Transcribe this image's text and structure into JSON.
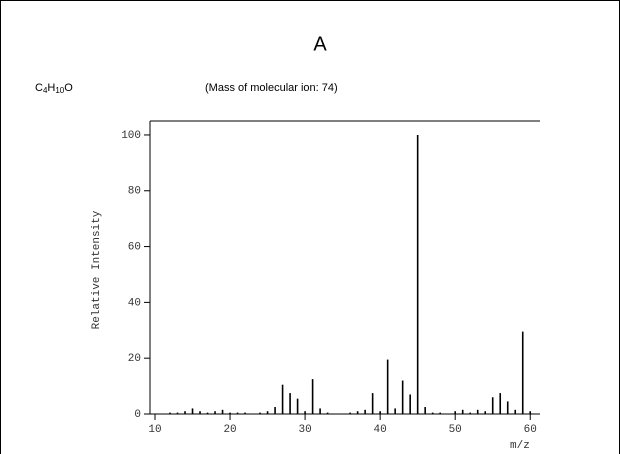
{
  "chart_data": {
    "type": "bar",
    "title": "A",
    "formula": [
      "C",
      "4",
      "H",
      "10",
      "O"
    ],
    "subtitle": "(Mass of molecular ion: 74)",
    "xlabel": "m/z",
    "ylabel": "Relative Intensity",
    "x": [
      12,
      13,
      14,
      15,
      16,
      17,
      18,
      19,
      20,
      21,
      22,
      24,
      25,
      26,
      27,
      28,
      29,
      30,
      31,
      32,
      33,
      36,
      37,
      38,
      39,
      40,
      41,
      42,
      43,
      44,
      45,
      46,
      47,
      48,
      50,
      51,
      52,
      53,
      54,
      55,
      56,
      57,
      58,
      59,
      60
    ],
    "values": [
      0.5,
      0.5,
      1,
      2,
      1,
      0.5,
      1,
      1.5,
      0.5,
      0.5,
      0.5,
      0.5,
      1,
      2.5,
      10.5,
      7.5,
      5.5,
      1,
      12.5,
      2,
      0.5,
      0.5,
      1,
      1.5,
      7.5,
      1,
      19.5,
      2,
      12,
      7,
      100,
      2.5,
      0.5,
      0.5,
      1,
      1.5,
      0.5,
      1.5,
      1,
      6,
      7.5,
      4.5,
      1.5,
      29.5,
      1
    ],
    "color": "#000000",
    "xlim": [
      10,
      61.3
    ],
    "ylim": [
      0,
      105
    ],
    "xticks": [
      10,
      20,
      30,
      40,
      50,
      60
    ],
    "yticks": [
      0,
      20,
      40,
      60,
      80,
      100
    ]
  }
}
